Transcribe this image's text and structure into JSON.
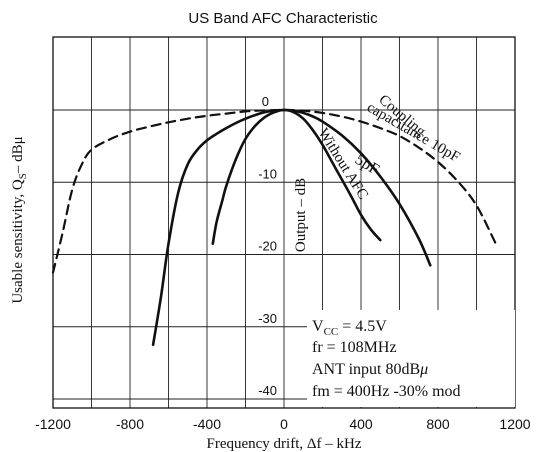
{
  "chart_data": {
    "type": "line",
    "title": "US Band AFC Characteristic",
    "xlabel": "Frequency drift, Δf  –  kHz",
    "ylabel": "Usable sensitivity, Q",
    "ylabel_sub": "S",
    "ylabel_unit": "–  dBμ",
    "xlim": [
      -1200,
      1200
    ],
    "ylim": [
      -40,
      0
    ],
    "x_ticks": [
      "-1200",
      "-800",
      "-400",
      "0",
      "400",
      "800",
      "1200"
    ],
    "y_ticks": [
      "0",
      "-10",
      "-20",
      "-30",
      "-40"
    ],
    "grid": true,
    "inner_axis_label": "Output  –  dB",
    "series": [
      {
        "name": "Coupling capacitance 10pF",
        "style": "dashed",
        "x": [
          -1200,
          -1150,
          -1100,
          -1050,
          -1000,
          -900,
          -800,
          -700,
          -600,
          -500,
          -400,
          -300,
          -200,
          -100,
          0,
          100,
          200,
          300,
          400,
          500,
          600,
          700,
          800,
          900,
          1000,
          1100
        ],
        "y": [
          -22.5,
          -17,
          -11,
          -7.5,
          -5.5,
          -4,
          -3,
          -2.3,
          -1.7,
          -1.2,
          -0.8,
          -0.5,
          -0.2,
          -0.05,
          0,
          -0.1,
          -0.4,
          -0.9,
          -1.6,
          -2.5,
          -3.6,
          -5.2,
          -7.2,
          -9.8,
          -13.2,
          -18.5
        ]
      },
      {
        "name": "5pF",
        "style": "solid",
        "x": [
          -680,
          -640,
          -600,
          -550,
          -500,
          -450,
          -400,
          -350,
          -300,
          -250,
          -200,
          -150,
          -100,
          -50,
          0,
          50,
          100,
          150,
          200,
          300,
          400,
          500,
          600,
          700,
          760
        ],
        "y": [
          -32.5,
          -26,
          -18.5,
          -11.5,
          -7.5,
          -5.5,
          -4.2,
          -3.3,
          -2.5,
          -1.8,
          -1.2,
          -0.7,
          -0.3,
          -0.1,
          0,
          -0.1,
          -0.4,
          -0.9,
          -1.6,
          -3.5,
          -6,
          -9.2,
          -13,
          -17.8,
          -21.5
        ]
      },
      {
        "name": "Without AFC",
        "style": "solid",
        "x": [
          -370,
          -350,
          -320,
          -300,
          -250,
          -200,
          -150,
          -100,
          -50,
          0,
          50,
          100,
          150,
          200,
          250,
          300,
          350,
          400,
          450,
          500
        ],
        "y": [
          -18.5,
          -15.5,
          -12.5,
          -10.5,
          -6.8,
          -4,
          -2.2,
          -1,
          -0.3,
          0,
          -0.3,
          -1.2,
          -2.8,
          -4.8,
          -7.2,
          -9.6,
          -12,
          -14.5,
          -16.5,
          -18
        ]
      }
    ],
    "annotations": [
      {
        "name": "coupling",
        "lines": [
          "Coupling",
          "capacitance 10pF"
        ]
      },
      {
        "name": "5pf",
        "lines": [
          "5pF"
        ]
      },
      {
        "name": "without-afc",
        "lines": [
          "Without AFC"
        ]
      }
    ],
    "conditions": [
      {
        "pre": "V",
        "sub": "CC",
        "post": " = 4.5V"
      },
      {
        "pre": "fr = 108MHz",
        "sub": "",
        "post": ""
      },
      {
        "pre": "ANT  input  80dB",
        "sub": "",
        "post": "μ"
      },
      {
        "pre": "fm = 400Hz -30% mod",
        "sub": "",
        "post": ""
      }
    ]
  }
}
